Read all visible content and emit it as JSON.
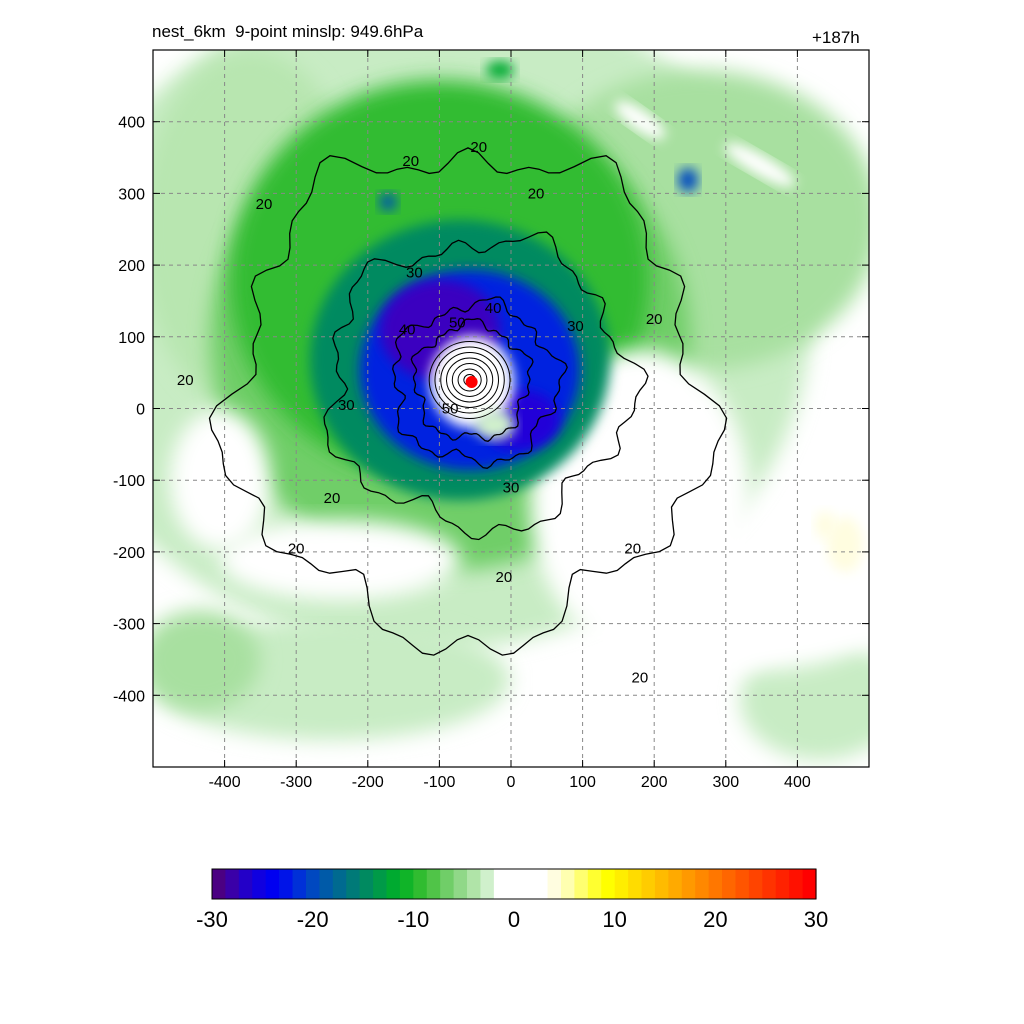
{
  "header": {
    "title": "nest_6km  9-point minslp: 949.6hPa",
    "forecast_hour": "+187h"
  },
  "chart_data": {
    "type": "heatmap",
    "title": "nest_6km  9-point minslp: 949.6hPa",
    "subtitle": "+187h",
    "xlabel": "",
    "ylabel": "",
    "xlim": [
      -500,
      500
    ],
    "ylim": [
      -500,
      500
    ],
    "x_ticks": [
      -400,
      -300,
      -200,
      -100,
      0,
      100,
      200,
      300,
      400
    ],
    "y_ticks": [
      400,
      300,
      200,
      100,
      0,
      -100,
      -200,
      -300,
      -400
    ],
    "grid": true,
    "center_marker": {
      "x": -55,
      "y": 37,
      "color": "#ff0000"
    },
    "contours": [
      {
        "level": 20,
        "label": "20",
        "rx": 330,
        "ry": 340,
        "cx": -60,
        "cy": 20
      },
      {
        "level": 30,
        "label": "30",
        "rx": 210,
        "ry": 200,
        "cx": -45,
        "cy": 35
      },
      {
        "level": 40,
        "label": "40",
        "rx": 115,
        "ry": 110,
        "cx": -50,
        "cy": 35
      },
      {
        "level": 50,
        "label": "50",
        "rx": 80,
        "ry": 80,
        "cx": -55,
        "cy": 37
      }
    ],
    "contour_label_positions": [
      {
        "label": "20",
        "x": -455,
        "y": 40
      },
      {
        "label": "20",
        "x": -345,
        "y": 285
      },
      {
        "label": "20",
        "x": -140,
        "y": 345
      },
      {
        "label": "20",
        "x": -45,
        "y": 365
      },
      {
        "label": "20",
        "x": 35,
        "y": 300
      },
      {
        "label": "20",
        "x": 200,
        "y": 125
      },
      {
        "label": "20",
        "x": 170,
        "y": -195
      },
      {
        "label": "20",
        "x": 180,
        "y": -375
      },
      {
        "label": "20",
        "x": -300,
        "y": -195
      },
      {
        "label": "20",
        "x": -250,
        "y": -125
      },
      {
        "label": "20",
        "x": -10,
        "y": -235
      },
      {
        "label": "30",
        "x": -135,
        "y": 190
      },
      {
        "label": "30",
        "x": 90,
        "y": 115
      },
      {
        "label": "30",
        "x": -230,
        "y": 5
      },
      {
        "label": "30",
        "x": 0,
        "y": -110
      },
      {
        "label": "40",
        "x": -145,
        "y": 110
      },
      {
        "label": "40",
        "x": -25,
        "y": 140
      },
      {
        "label": "50",
        "x": -75,
        "y": 120
      },
      {
        "label": "50",
        "x": -85,
        "y": 0
      }
    ],
    "colorbar": {
      "min": -30,
      "max": 30,
      "ticks": [
        "-30",
        "-20",
        "-10",
        "0",
        "10",
        "20",
        "30"
      ],
      "colors": [
        "#4b0082",
        "#3a00a8",
        "#2300c8",
        "#1000e0",
        "#0000f0",
        "#0014e8",
        "#0030d8",
        "#0048c0",
        "#005aa8",
        "#006a90",
        "#007a78",
        "#008a60",
        "#009a48",
        "#00aa30",
        "#10b428",
        "#30bc30",
        "#50c448",
        "#70ce68",
        "#90d888",
        "#b0e4a8",
        "#d0f0cc",
        "#ffffff",
        "#ffffff",
        "#ffffff",
        "#ffffff",
        "#fffde0",
        "#ffffb0",
        "#ffff70",
        "#ffff30",
        "#ffff00",
        "#ffee00",
        "#ffdc00",
        "#ffcc00",
        "#ffbb00",
        "#ffaa00",
        "#ff9900",
        "#ff8800",
        "#ff7700",
        "#ff6600",
        "#ff5500",
        "#ff4400",
        "#ff3300",
        "#ff2200",
        "#ff1100",
        "#ff0000"
      ]
    }
  }
}
